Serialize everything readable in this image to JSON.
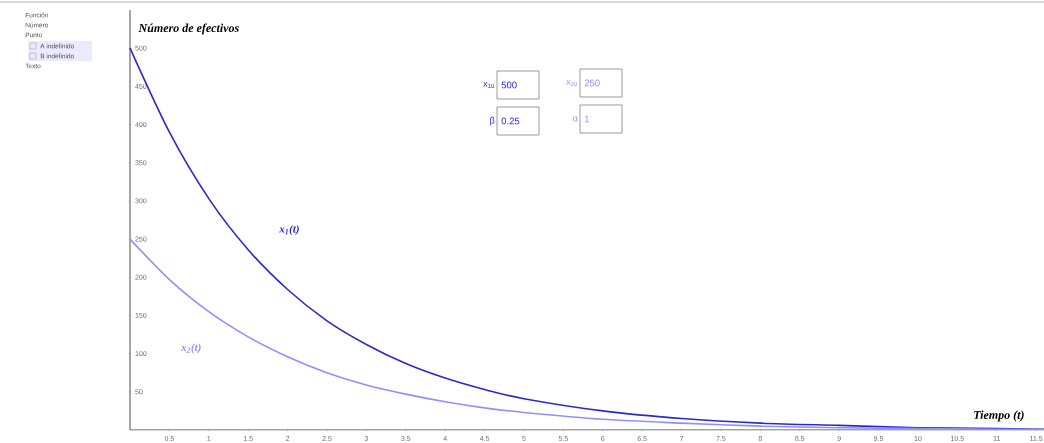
{
  "chart_data": {
    "type": "line",
    "xlabel": "Tiempo (t)",
    "ylabel": "Número de efectivos",
    "x": [
      0,
      0.5,
      1,
      1.5,
      2,
      2.5,
      3,
      3.5,
      4,
      4.5,
      5,
      6,
      7,
      8,
      9,
      10,
      11,
      11.6
    ],
    "series": [
      {
        "name": "x$_{1}$(t)",
        "color": "#2a2acc",
        "values": [
          500,
          390,
          303,
          236,
          184,
          143,
          112,
          87,
          68,
          53,
          41,
          25,
          15,
          9,
          6,
          3,
          2,
          1
        ]
      },
      {
        "name": "x$_{2}$(t)",
        "color": "#9090f8",
        "values": [
          250,
          197,
          155,
          122,
          96,
          75,
          59,
          47,
          37,
          29,
          23,
          14,
          9,
          5,
          3,
          2,
          1,
          1
        ]
      }
    ],
    "xlim": [
      0,
      11.6
    ],
    "ylim": [
      0,
      550
    ],
    "xticks": [
      0.5,
      1,
      1.5,
      2,
      2.5,
      3,
      3.5,
      4,
      4.5,
      5,
      5.5,
      6,
      6.5,
      7,
      7.5,
      8,
      8.5,
      9,
      9.5,
      10,
      10.5,
      11,
      11.5
    ],
    "yticks": [
      50,
      100,
      150,
      200,
      250,
      300,
      350,
      400,
      450,
      500
    ],
    "grid": false,
    "marker": "none",
    "line_style": "solid",
    "annotations": [
      "Función",
      "Número",
      "Punto",
      "A indefinido",
      "B indefinido",
      "Texto",
      "x$_{10}$",
      "500",
      "β",
      "0.25",
      "x$_{20}$",
      "250",
      "α",
      "1"
    ]
  }
}
